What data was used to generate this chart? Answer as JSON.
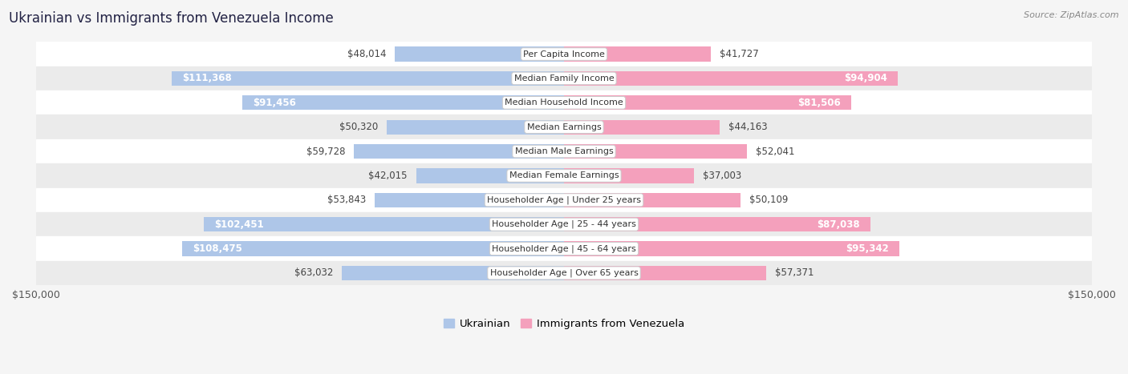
{
  "title": "Ukrainian vs Immigrants from Venezuela Income",
  "source": "Source: ZipAtlas.com",
  "categories": [
    "Per Capita Income",
    "Median Family Income",
    "Median Household Income",
    "Median Earnings",
    "Median Male Earnings",
    "Median Female Earnings",
    "Householder Age | Under 25 years",
    "Householder Age | 25 - 44 years",
    "Householder Age | 45 - 64 years",
    "Householder Age | Over 65 years"
  ],
  "ukrainian_values": [
    48014,
    111368,
    91456,
    50320,
    59728,
    42015,
    53843,
    102451,
    108475,
    63032
  ],
  "venezuela_values": [
    41727,
    94904,
    81506,
    44163,
    52041,
    37003,
    50109,
    87038,
    95342,
    57371
  ],
  "ukrainian_labels": [
    "$48,014",
    "$111,368",
    "$91,456",
    "$50,320",
    "$59,728",
    "$42,015",
    "$53,843",
    "$102,451",
    "$108,475",
    "$63,032"
  ],
  "venezuela_labels": [
    "$41,727",
    "$94,904",
    "$81,506",
    "$44,163",
    "$52,041",
    "$37,003",
    "$50,109",
    "$87,038",
    "$95,342",
    "$57,371"
  ],
  "ukraine_fill_color": "#aec6e8",
  "venezuela_fill_color": "#f4a0bc",
  "max_value": 150000,
  "bar_height": 0.6,
  "background_color": "#f5f5f5",
  "row_colors": [
    "#ffffff",
    "#ebebeb"
  ],
  "label_fontsize": 8.5,
  "title_fontsize": 12,
  "axis_label": "$150,000",
  "legend_ukrainian": "Ukrainian",
  "legend_venezuela": "Immigrants from Venezuela",
  "inside_threshold": 65000
}
